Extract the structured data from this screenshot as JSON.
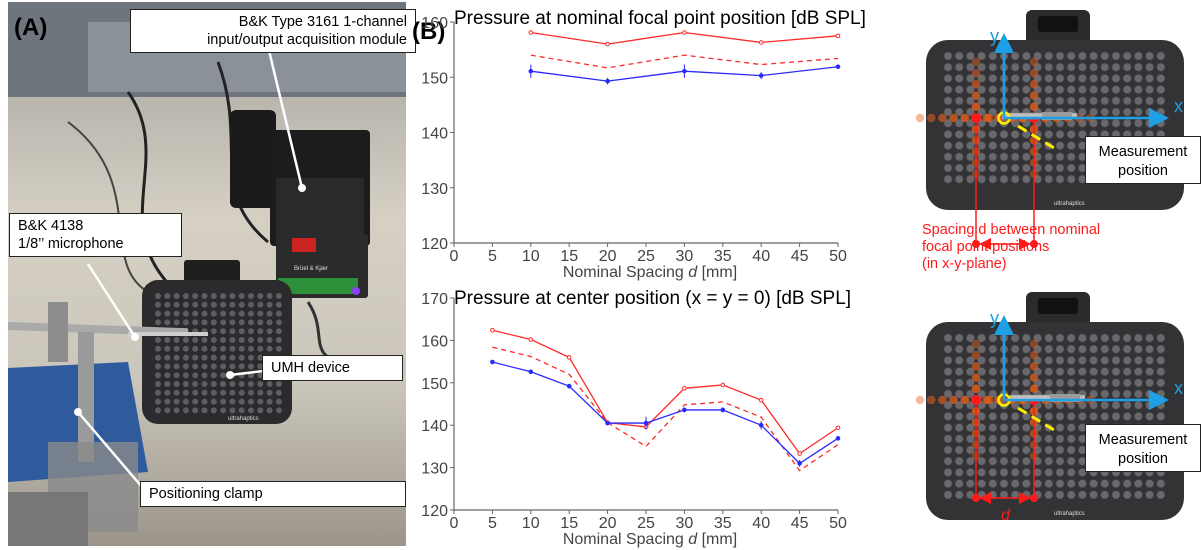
{
  "panel_a": {
    "label": "(A)",
    "callouts": {
      "module": [
        "B&K Type 3161 1-channel",
        "input/output acquisition module"
      ],
      "microphone": [
        "B&K 4138",
        "1/8’’ microphone"
      ],
      "umh": "UMH device",
      "clamp": "Positioning clamp"
    },
    "photo_text": {
      "umh_logo": "ultrahaptics",
      "module_brand": "Brüel & Kjær"
    }
  },
  "panel_b": {
    "label": "(B)",
    "top_device": {
      "x_axis": "x",
      "y_axis": "y",
      "measurement": [
        "Measurement",
        "position"
      ],
      "spacing_note": [
        "Spacing d between nominal",
        "focal point positions",
        "(in x-y-plane)"
      ],
      "logo": "ultrahaptics"
    },
    "bottom_device": {
      "x_axis": "x",
      "y_axis": "y",
      "measurement": [
        "Measurement",
        "position"
      ],
      "d_label": "d",
      "logo": "ultrahaptics"
    },
    "colors": {
      "red": "#ff2a2a",
      "blue": "#2a2aff",
      "device": "#333336",
      "focal": "#e8601c",
      "axis_cyan": "#1ea0e6",
      "marker_yellow": "#ffee00"
    }
  },
  "chart_data": [
    {
      "type": "line",
      "title": "Pressure at nominal focal point position [dB SPL]",
      "xlabel_prefix": "Nominal Spacing ",
      "xlabel_var": "d",
      "xlabel_suffix": " [mm]",
      "xlim": [
        0,
        50
      ],
      "ylim": [
        120,
        160
      ],
      "xticks": [
        0,
        5,
        10,
        15,
        20,
        25,
        30,
        35,
        40,
        45,
        50
      ],
      "yticks": [
        120,
        130,
        140,
        150,
        160
      ],
      "grid": false,
      "series": [
        {
          "style": "red-solid",
          "x": [
            10,
            20,
            30,
            40,
            50
          ],
          "y": [
            158.1,
            156.0,
            158.1,
            156.3,
            157.5
          ]
        },
        {
          "style": "red-dashed",
          "x": [
            10,
            20,
            30,
            40,
            50
          ],
          "y": [
            154.0,
            151.7,
            154.0,
            152.3,
            153.4
          ]
        },
        {
          "style": "blue-solid",
          "x": [
            10,
            20,
            30,
            40,
            50
          ],
          "y": [
            151.1,
            149.3,
            151.1,
            150.3,
            151.9
          ],
          "err": [
            1.2,
            0.6,
            1.2,
            0.6,
            0.4
          ]
        }
      ]
    },
    {
      "type": "line",
      "title": "Pressure at center position (x = y = 0) [dB SPL]",
      "xlabel_prefix": "Nominal Spacing ",
      "xlabel_var": "d",
      "xlabel_suffix": " [mm]",
      "xlim": [
        0,
        50
      ],
      "ylim": [
        120,
        170
      ],
      "xticks": [
        0,
        5,
        10,
        15,
        20,
        25,
        30,
        35,
        40,
        45,
        50
      ],
      "yticks": [
        120,
        130,
        140,
        150,
        160,
        170
      ],
      "grid": false,
      "series": [
        {
          "style": "red-solid",
          "x": [
            5,
            10,
            15,
            20,
            25,
            30,
            35,
            40,
            45,
            50
          ],
          "y": [
            162.4,
            160.2,
            156.0,
            140.6,
            139.6,
            148.7,
            149.5,
            145.9,
            133.3,
            139.4
          ]
        },
        {
          "style": "red-dashed",
          "x": [
            5,
            10,
            15,
            20,
            25,
            30,
            35,
            40,
            45,
            50
          ],
          "y": [
            158.4,
            156.2,
            152.0,
            140.6,
            135.0,
            144.8,
            145.5,
            141.9,
            129.3,
            135.4
          ]
        },
        {
          "style": "blue-solid",
          "x": [
            5,
            10,
            15,
            20,
            25,
            30,
            35,
            40,
            45,
            50
          ],
          "y": [
            154.9,
            152.6,
            149.2,
            140.5,
            140.5,
            143.6,
            143.6,
            140.0,
            131.0,
            136.9
          ],
          "err": [
            0.4,
            0.4,
            0.5,
            0.4,
            1.5,
            0.6,
            0.6,
            1.0,
            0.8,
            0.5
          ]
        }
      ]
    }
  ]
}
